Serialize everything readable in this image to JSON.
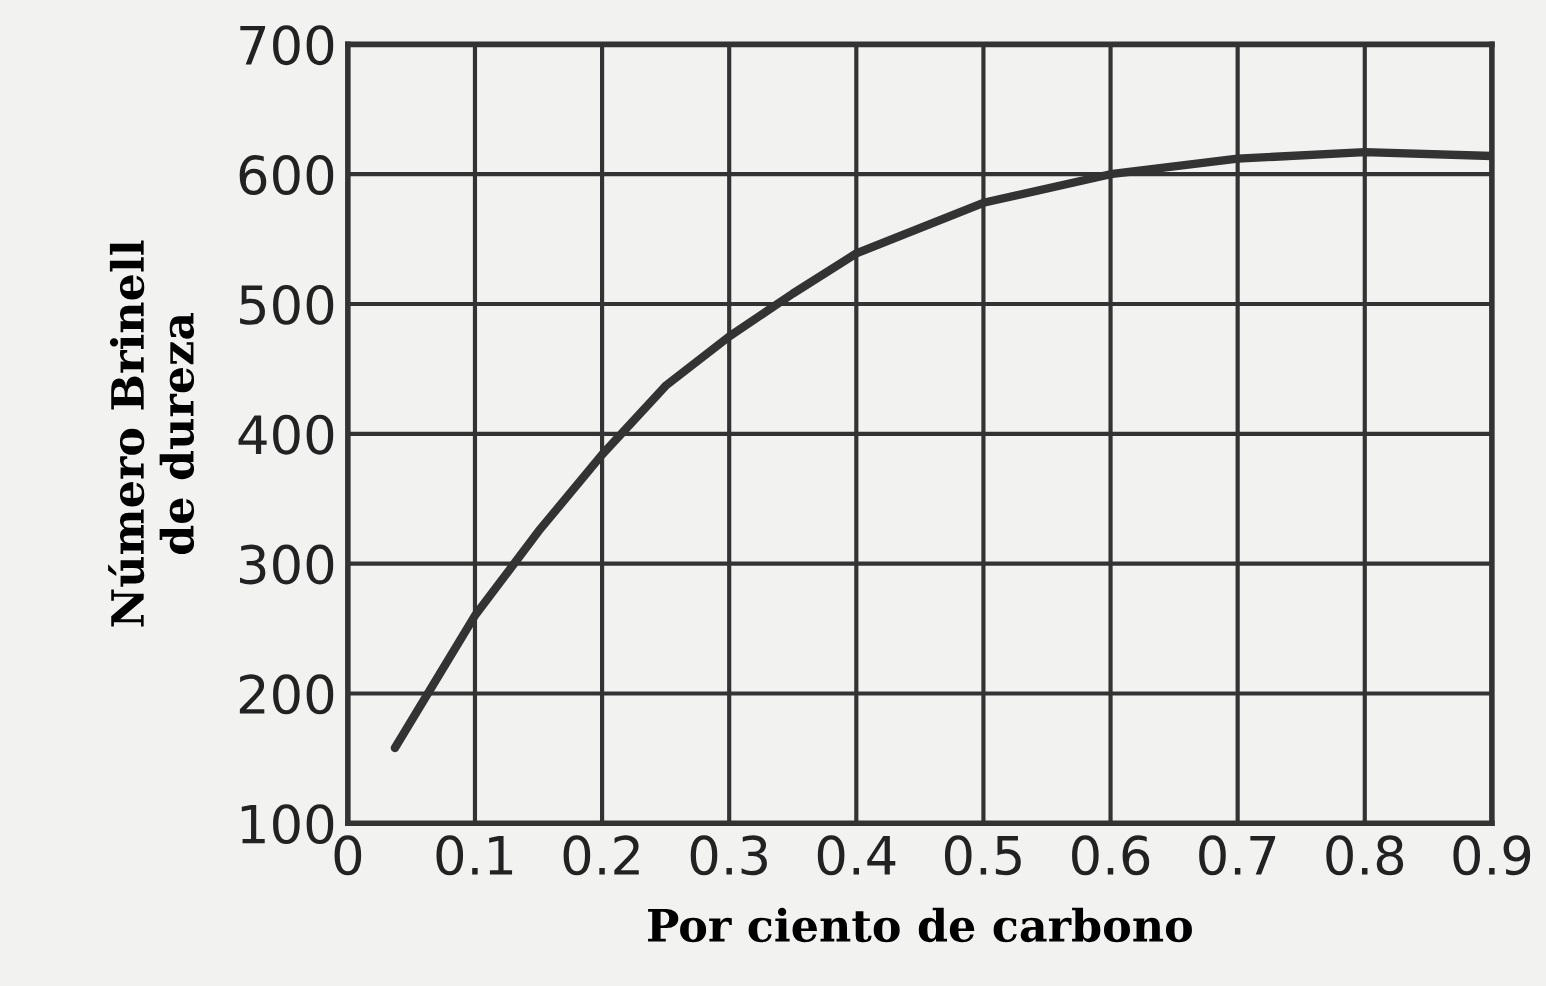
{
  "chart_data": {
    "type": "line",
    "xlabel": "Por ciento de carbono",
    "ylabel": "Número Brinell\nde dureza",
    "x": [
      0.037,
      0.1,
      0.15,
      0.2,
      0.25,
      0.3,
      0.35,
      0.4,
      0.5,
      0.6,
      0.7,
      0.8,
      0.9
    ],
    "series": [
      {
        "color": "#333333",
        "values": [
          158,
          260,
          325,
          384,
          437,
          475,
          508,
          539,
          578,
          600,
          612,
          617,
          614
        ]
      }
    ],
    "xlim": [
      0,
      0.9
    ],
    "ylim": [
      100,
      700
    ],
    "xticks": [
      0,
      0.1,
      0.2,
      0.3,
      0.4,
      0.5,
      0.6,
      0.7,
      0.8,
      0.9
    ],
    "yticks": [
      100,
      200,
      300,
      400,
      500,
      600,
      700
    ],
    "grid": true,
    "marker": "none",
    "line_style": "solid"
  }
}
